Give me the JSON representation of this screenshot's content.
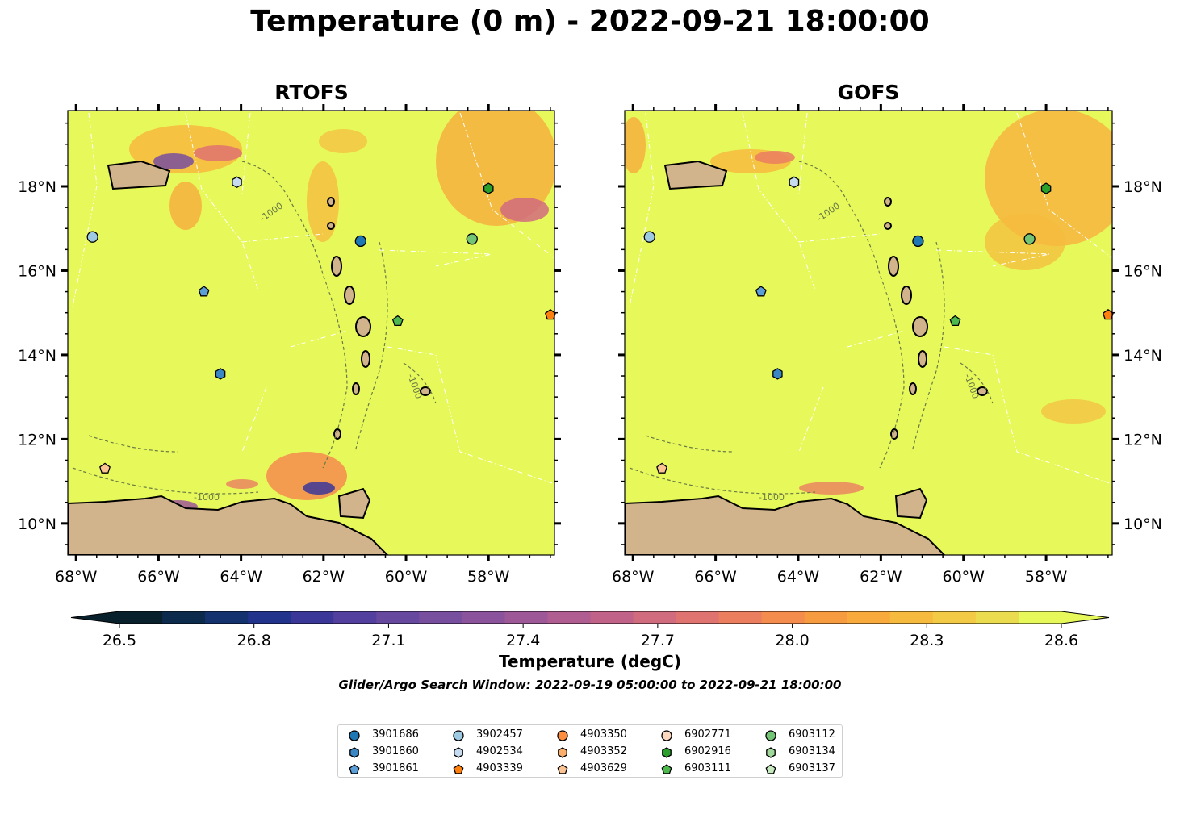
{
  "figure": {
    "title": "Temperature (0 m) - 2022-09-21 18:00:00",
    "colorbar_label": "Temperature (degC)",
    "search_window": "Glider/Argo Search Window: 2022-09-19 05:00:00 to 2022-09-21 18:00:00"
  },
  "map": {
    "extent": {
      "lon_min": -68.2,
      "lon_max": -56.4,
      "lat_min": 9.25,
      "lat_max": 19.8
    },
    "lon_ticks": [
      -68,
      -66,
      -64,
      -62,
      -60,
      -58
    ],
    "lon_tick_labels": [
      "68°W",
      "66°W",
      "64°W",
      "62°W",
      "60°W",
      "58°W"
    ],
    "lat_ticks": [
      10,
      12,
      14,
      16,
      18
    ],
    "lat_tick_labels": [
      "10°N",
      "12°N",
      "14°N",
      "16°N",
      "18°N"
    ],
    "background_color": "#e7f95a",
    "land_color": "#d2b48c",
    "bathymetry_contour_label": "-1000",
    "panels": [
      {
        "name": "RTOFS",
        "title": "RTOFS"
      },
      {
        "name": "GOFS",
        "title": "GOFS"
      }
    ]
  },
  "colorbar": {
    "min": 26.45,
    "max": 28.7,
    "ticks": [
      26.5,
      26.8,
      27.1,
      27.4,
      27.7,
      28.0,
      28.3,
      28.6
    ],
    "tick_labels": [
      "26.5",
      "26.8",
      "27.1",
      "27.4",
      "27.7",
      "28.0",
      "28.3",
      "28.6"
    ],
    "extend": "both",
    "colors": [
      "#07202b",
      "#0c2b4c",
      "#14326e",
      "#22338b",
      "#3b3799",
      "#533f9d",
      "#66489f",
      "#784e9f",
      "#8a539c",
      "#9d5898",
      "#b05d91",
      "#c16388",
      "#d16b7e",
      "#df7370",
      "#ea7e5f",
      "#f48c4d",
      "#f79b40",
      "#f8ab3c",
      "#f6bb3e",
      "#f2ca45",
      "#eadb4f",
      "#e7f95a"
    ]
  },
  "floats": [
    {
      "id": "3901686",
      "marker": "circle",
      "color": "#1f77b4",
      "lon": -61.1,
      "lat": 16.7
    },
    {
      "id": "3901860",
      "marker": "hexagon",
      "color": "#3b87c4",
      "lon": -64.5,
      "lat": 13.55
    },
    {
      "id": "3901861",
      "marker": "pentagon",
      "color": "#5c9fd6",
      "lon": -64.9,
      "lat": 15.5
    },
    {
      "id": "3902457",
      "marker": "circle",
      "color": "#9ecae1",
      "lon": -67.6,
      "lat": 16.8
    },
    {
      "id": "4902534",
      "marker": "hexagon",
      "color": "#c6dbef",
      "lon": -64.1,
      "lat": 18.1
    },
    {
      "id": "4903339",
      "marker": "pentagon",
      "color": "#fd7f0e",
      "lon": -56.5,
      "lat": 14.95
    },
    {
      "id": "4903350",
      "marker": "circle",
      "color": "#fd8d3c",
      "lon": null,
      "lat": null
    },
    {
      "id": "4903352",
      "marker": "hexagon",
      "color": "#fdae6b",
      "lon": null,
      "lat": null
    },
    {
      "id": "4903629",
      "marker": "pentagon",
      "color": "#fdc493",
      "lon": -67.3,
      "lat": 11.3
    },
    {
      "id": "6902771",
      "marker": "circle",
      "color": "#fdd9bf",
      "lon": null,
      "lat": null
    },
    {
      "id": "6902916",
      "marker": "hexagon",
      "color": "#2ca02c",
      "lon": -58.0,
      "lat": 17.95
    },
    {
      "id": "6903111",
      "marker": "pentagon",
      "color": "#4db84d",
      "lon": -60.2,
      "lat": 14.8
    },
    {
      "id": "6903112",
      "marker": "circle",
      "color": "#74c476",
      "lon": -58.4,
      "lat": 16.75
    },
    {
      "id": "6903134",
      "marker": "hexagon",
      "color": "#a1d99b",
      "lon": null,
      "lat": null
    },
    {
      "id": "6903137",
      "marker": "pentagon",
      "color": "#c7e9c0",
      "lon": null,
      "lat": null
    }
  ]
}
